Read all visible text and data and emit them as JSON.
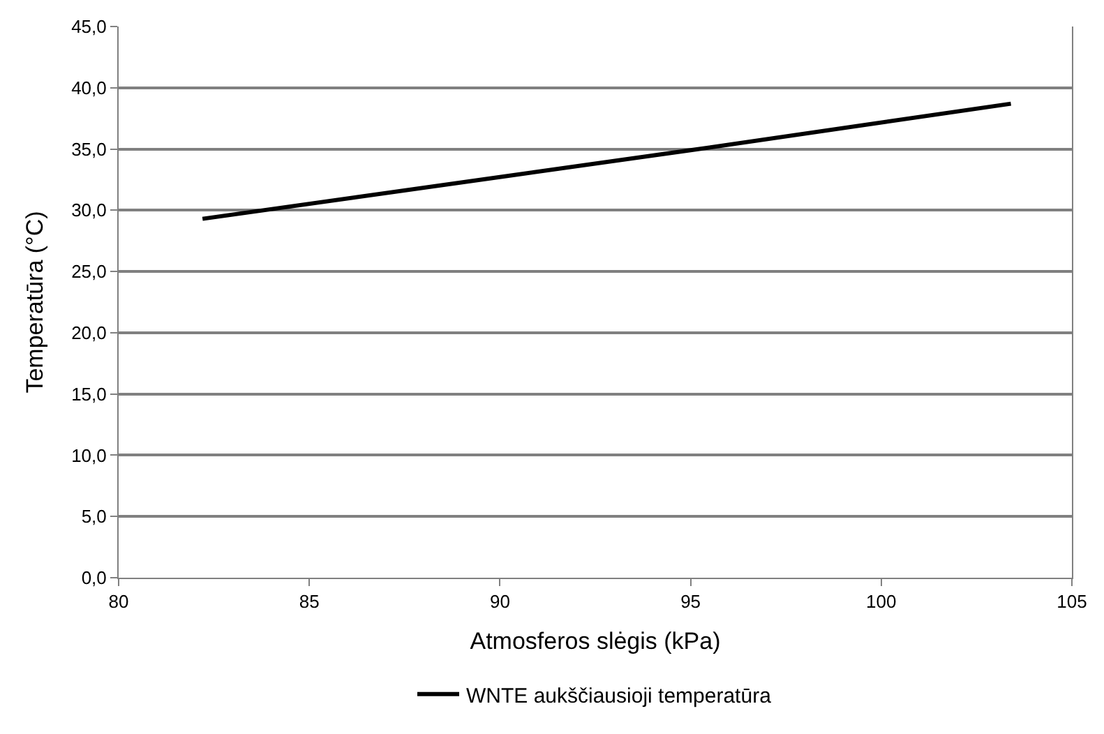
{
  "chart_data": {
    "type": "line",
    "xlabel": "Atmosferos slėgis (kPa)",
    "ylabel": "Temperatūra (°C)",
    "x": [
      82.2,
      95,
      103.4
    ],
    "series": [
      {
        "name": "WNTE aukščiausioji temperatūra",
        "color": "#000000",
        "values": [
          29.3,
          34.9,
          38.7
        ]
      }
    ],
    "xlim": [
      80,
      105
    ],
    "xticks": [
      80,
      85,
      90,
      95,
      100,
      105
    ],
    "ylim": [
      0,
      45
    ],
    "yticks": [
      {
        "value": 0,
        "label": "0,0"
      },
      {
        "value": 5,
        "label": "5,0"
      },
      {
        "value": 10,
        "label": "10,0"
      },
      {
        "value": 15,
        "label": "15,0"
      },
      {
        "value": 20,
        "label": "20,0"
      },
      {
        "value": 25,
        "label": "25,0"
      },
      {
        "value": 30,
        "label": "30,0"
      },
      {
        "value": 35,
        "label": "35,0"
      },
      {
        "value": 40,
        "label": "40,0"
      },
      {
        "value": 45,
        "label": "45,0"
      }
    ],
    "grid": "y",
    "legend": "bottom",
    "marker": "none",
    "line_style": "solid"
  }
}
